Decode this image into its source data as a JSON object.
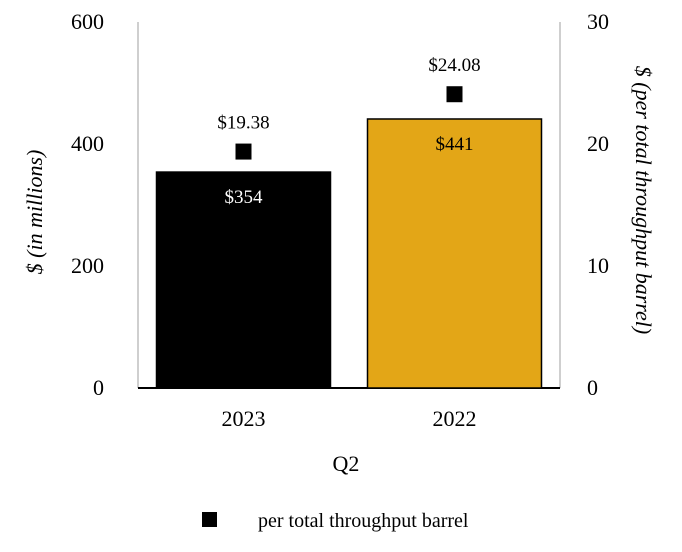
{
  "chart_data": {
    "type": "bar",
    "categories": [
      "2023",
      "2022"
    ],
    "xlabel": "Q2",
    "ylabel_left": "$ (in millions)",
    "ylabel_right": "$ (per total throughput barrel)",
    "ylim_left": [
      0,
      600
    ],
    "ylim_right": [
      0,
      30
    ],
    "yticks_left": [
      "0",
      "200",
      "400",
      "600"
    ],
    "yticks_right": [
      "0",
      "10",
      "20",
      "30"
    ],
    "grid": false,
    "bar_series": {
      "values": [
        354,
        441
      ],
      "labels": [
        "$354",
        "$441"
      ],
      "colors": [
        "#000000",
        "#E3A617"
      ],
      "label_colors": [
        "#ffffff",
        "#000000"
      ]
    },
    "marker_series": {
      "name": "per total throughput barrel",
      "values": [
        19.38,
        24.08
      ],
      "labels": [
        "$19.38",
        "$24.08"
      ],
      "color": "#000000"
    },
    "legend_position": "bottom"
  }
}
